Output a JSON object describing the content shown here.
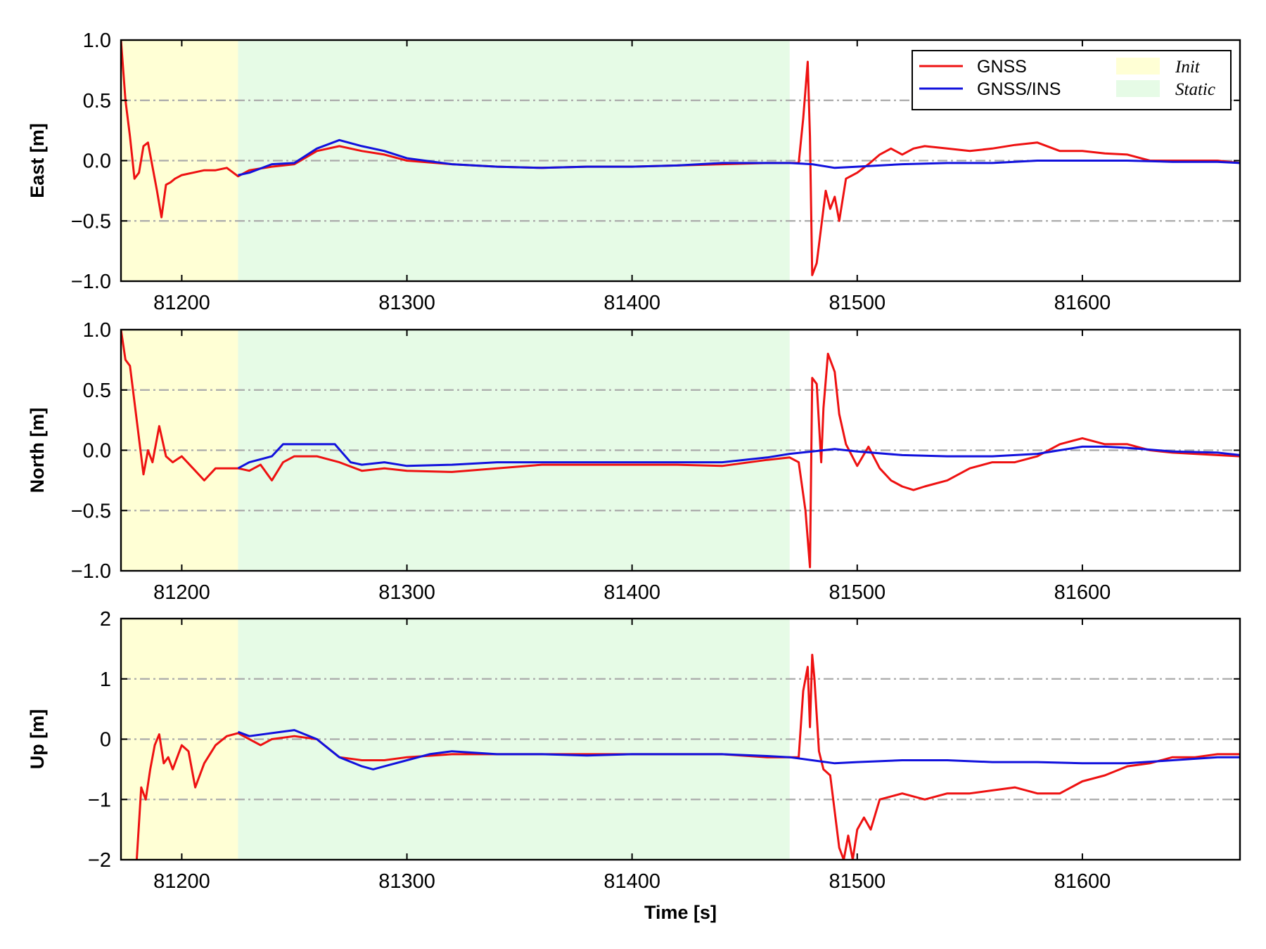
{
  "chart_data": [
    {
      "type": "line",
      "ylabel": "East [m]",
      "xlabel": "",
      "xlim": [
        81173,
        81670
      ],
      "ylim": [
        -1.0,
        1.0
      ],
      "xticks": [
        81200,
        81300,
        81400,
        81500,
        81600
      ],
      "xtick_labels": [
        "81200",
        "81300",
        "81400",
        "81500",
        "81600"
      ],
      "yticks": [
        -1.0,
        -0.5,
        0.0,
        0.5,
        1.0
      ],
      "ytick_labels": [
        "−1.0",
        "−0.5",
        "0.0",
        "0.5",
        "1.0"
      ],
      "hlines": [
        -0.5,
        0.0,
        0.5
      ],
      "shaded_regions": [
        {
          "name": "Init",
          "x0": 81173,
          "x1": 81225,
          "color": "#ffffd5"
        },
        {
          "name": "Static",
          "x0": 81225,
          "x1": 81470,
          "color": "#e6fbe6"
        }
      ],
      "legend": {
        "placement": "top-right",
        "lines": [
          {
            "label": "GNSS",
            "color": "#ee1111"
          },
          {
            "label": "GNSS/INS",
            "color": "#1111dd"
          }
        ],
        "patches": [
          {
            "label": "Init",
            "color": "#ffffd5"
          },
          {
            "label": "Static",
            "color": "#e6fbe6"
          }
        ]
      },
      "series": [
        {
          "name": "GNSS",
          "color": "#ee1111",
          "x": [
            81173,
            81175,
            81177,
            81179,
            81181,
            81183,
            81185,
            81187,
            81189,
            81191,
            81193,
            81195,
            81197,
            81200,
            81205,
            81210,
            81215,
            81220,
            81225,
            81230,
            81240,
            81250,
            81260,
            81270,
            81280,
            81290,
            81300,
            81320,
            81340,
            81360,
            81380,
            81400,
            81420,
            81440,
            81460,
            81470,
            81474,
            81476,
            81478,
            81479,
            81480,
            81482,
            81484,
            81486,
            81488,
            81490,
            81492,
            81495,
            81500,
            81505,
            81510,
            81515,
            81520,
            81525,
            81530,
            81540,
            81550,
            81560,
            81570,
            81580,
            81590,
            81600,
            81610,
            81620,
            81630,
            81640,
            81650,
            81660,
            81670
          ],
          "y": [
            1.0,
            0.5,
            0.2,
            -0.15,
            -0.1,
            0.12,
            0.15,
            -0.05,
            -0.25,
            -0.47,
            -0.2,
            -0.18,
            -0.15,
            -0.12,
            -0.1,
            -0.08,
            -0.08,
            -0.06,
            -0.13,
            -0.08,
            -0.05,
            -0.03,
            0.08,
            0.12,
            0.08,
            0.05,
            0.0,
            -0.03,
            -0.05,
            -0.06,
            -0.05,
            -0.05,
            -0.04,
            -0.03,
            -0.02,
            -0.02,
            -0.02,
            0.35,
            0.82,
            0.2,
            -0.95,
            -0.85,
            -0.55,
            -0.25,
            -0.4,
            -0.3,
            -0.5,
            -0.15,
            -0.1,
            -0.03,
            0.05,
            0.1,
            0.05,
            0.1,
            0.12,
            0.1,
            0.08,
            0.1,
            0.13,
            0.15,
            0.08,
            0.08,
            0.06,
            0.05,
            0.0,
            0.0,
            0.0,
            0.0,
            -0.02
          ]
        },
        {
          "name": "GNSS/INS",
          "color": "#1111dd",
          "x": [
            81225,
            81230,
            81240,
            81250,
            81260,
            81270,
            81280,
            81290,
            81300,
            81320,
            81340,
            81360,
            81380,
            81400,
            81420,
            81440,
            81460,
            81470,
            81480,
            81490,
            81500,
            81520,
            81540,
            81560,
            81580,
            81600,
            81620,
            81640,
            81660,
            81670
          ],
          "y": [
            -0.12,
            -0.1,
            -0.03,
            -0.02,
            0.1,
            0.17,
            0.12,
            0.08,
            0.02,
            -0.03,
            -0.05,
            -0.06,
            -0.05,
            -0.05,
            -0.04,
            -0.02,
            -0.02,
            -0.02,
            -0.03,
            -0.06,
            -0.05,
            -0.03,
            -0.02,
            -0.02,
            0.0,
            0.0,
            0.0,
            -0.01,
            -0.01,
            -0.02
          ]
        }
      ]
    },
    {
      "type": "line",
      "ylabel": "North [m]",
      "xlabel": "",
      "xlim": [
        81173,
        81670
      ],
      "ylim": [
        -1.0,
        1.0
      ],
      "xticks": [
        81200,
        81300,
        81400,
        81500,
        81600
      ],
      "xtick_labels": [
        "81200",
        "81300",
        "81400",
        "81500",
        "81600"
      ],
      "yticks": [
        -1.0,
        -0.5,
        0.0,
        0.5,
        1.0
      ],
      "ytick_labels": [
        "−1.0",
        "−0.5",
        "0.0",
        "0.5",
        "1.0"
      ],
      "hlines": [
        -0.5,
        0.0,
        0.5
      ],
      "shaded_regions": [
        {
          "name": "Init",
          "x0": 81173,
          "x1": 81225,
          "color": "#ffffd5"
        },
        {
          "name": "Static",
          "x0": 81225,
          "x1": 81470,
          "color": "#e6fbe6"
        }
      ],
      "series": [
        {
          "name": "GNSS",
          "color": "#ee1111",
          "x": [
            81173,
            81175,
            81177,
            81179,
            81181,
            81183,
            81185,
            81187,
            81190,
            81193,
            81196,
            81200,
            81205,
            81210,
            81215,
            81220,
            81225,
            81230,
            81235,
            81240,
            81245,
            81250,
            81260,
            81270,
            81280,
            81290,
            81300,
            81320,
            81340,
            81360,
            81380,
            81400,
            81420,
            81440,
            81460,
            81470,
            81474,
            81477,
            81479,
            81480,
            81482,
            81484,
            81485,
            81487,
            81490,
            81492,
            81495,
            81500,
            81505,
            81510,
            81515,
            81520,
            81525,
            81530,
            81540,
            81550,
            81560,
            81570,
            81580,
            81590,
            81600,
            81610,
            81620,
            81630,
            81640,
            81650,
            81660,
            81670
          ],
          "y": [
            1.0,
            0.75,
            0.7,
            0.4,
            0.1,
            -0.2,
            0.0,
            -0.1,
            0.2,
            -0.05,
            -0.1,
            -0.05,
            -0.15,
            -0.25,
            -0.15,
            -0.15,
            -0.15,
            -0.17,
            -0.12,
            -0.25,
            -0.1,
            -0.05,
            -0.05,
            -0.1,
            -0.17,
            -0.15,
            -0.17,
            -0.18,
            -0.15,
            -0.12,
            -0.12,
            -0.12,
            -0.12,
            -0.13,
            -0.08,
            -0.06,
            -0.1,
            -0.5,
            -0.97,
            0.6,
            0.55,
            -0.1,
            0.35,
            0.8,
            0.65,
            0.3,
            0.05,
            -0.13,
            0.03,
            -0.15,
            -0.25,
            -0.3,
            -0.33,
            -0.3,
            -0.25,
            -0.15,
            -0.1,
            -0.1,
            -0.05,
            0.05,
            0.1,
            0.05,
            0.05,
            0.0,
            -0.02,
            -0.03,
            -0.04,
            -0.05
          ]
        },
        {
          "name": "GNSS/INS",
          "color": "#1111dd",
          "x": [
            81225,
            81230,
            81240,
            81245,
            81250,
            81260,
            81268,
            81275,
            81280,
            81290,
            81300,
            81320,
            81340,
            81360,
            81380,
            81400,
            81420,
            81440,
            81460,
            81470,
            81480,
            81490,
            81500,
            81520,
            81540,
            81560,
            81580,
            81590,
            81600,
            81610,
            81620,
            81640,
            81660,
            81670
          ],
          "y": [
            -0.15,
            -0.1,
            -0.05,
            0.05,
            0.05,
            0.05,
            0.05,
            -0.1,
            -0.12,
            -0.1,
            -0.13,
            -0.12,
            -0.1,
            -0.1,
            -0.1,
            -0.1,
            -0.1,
            -0.1,
            -0.06,
            -0.03,
            -0.01,
            0.01,
            -0.01,
            -0.04,
            -0.05,
            -0.05,
            -0.03,
            0.0,
            0.03,
            0.03,
            0.02,
            -0.01,
            -0.02,
            -0.04
          ]
        }
      ]
    },
    {
      "type": "line",
      "ylabel": "Up [m]",
      "xlabel": "Time [s]",
      "xlim": [
        81173,
        81670
      ],
      "ylim": [
        -2,
        2
      ],
      "xticks": [
        81200,
        81300,
        81400,
        81500,
        81600
      ],
      "xtick_labels": [
        "81200",
        "81300",
        "81400",
        "81500",
        "81600"
      ],
      "yticks": [
        -2,
        -1,
        0,
        1,
        2
      ],
      "ytick_labels": [
        "−2",
        "−1",
        "0",
        "1",
        "2"
      ],
      "hlines": [
        -1,
        0,
        1
      ],
      "shaded_regions": [
        {
          "name": "Init",
          "x0": 81173,
          "x1": 81225,
          "color": "#ffffd5"
        },
        {
          "name": "Static",
          "x0": 81225,
          "x1": 81470,
          "color": "#e6fbe6"
        }
      ],
      "series": [
        {
          "name": "GNSS",
          "color": "#ee1111",
          "x": [
            81180,
            81182,
            81184,
            81186,
            81188,
            81190,
            81192,
            81194,
            81196,
            81200,
            81203,
            81206,
            81210,
            81215,
            81220,
            81225,
            81230,
            81235,
            81240,
            81250,
            81260,
            81270,
            81280,
            81290,
            81300,
            81320,
            81340,
            81360,
            81380,
            81400,
            81420,
            81440,
            81460,
            81470,
            81474,
            81476,
            81478,
            81479,
            81480,
            81481,
            81483,
            81485,
            81488,
            81490,
            81492,
            81494,
            81496,
            81498,
            81500,
            81503,
            81506,
            81510,
            81520,
            81530,
            81540,
            81550,
            81560,
            81570,
            81580,
            81590,
            81600,
            81610,
            81620,
            81630,
            81640,
            81650,
            81660,
            81670
          ],
          "y": [
            -2.0,
            -0.8,
            -1.0,
            -0.5,
            -0.1,
            0.08,
            -0.4,
            -0.3,
            -0.5,
            -0.1,
            -0.2,
            -0.8,
            -0.4,
            -0.1,
            0.05,
            0.1,
            0.0,
            -0.1,
            0.0,
            0.05,
            0.0,
            -0.3,
            -0.35,
            -0.35,
            -0.3,
            -0.25,
            -0.25,
            -0.25,
            -0.25,
            -0.25,
            -0.25,
            -0.25,
            -0.3,
            -0.3,
            -0.3,
            0.8,
            1.2,
            0.2,
            1.4,
            1.0,
            -0.2,
            -0.5,
            -0.6,
            -1.2,
            -1.8,
            -2.0,
            -1.6,
            -2.0,
            -1.5,
            -1.3,
            -1.5,
            -1.0,
            -0.9,
            -1.0,
            -0.9,
            -0.9,
            -0.85,
            -0.8,
            -0.9,
            -0.9,
            -0.7,
            -0.6,
            -0.45,
            -0.4,
            -0.3,
            -0.3,
            -0.25,
            -0.25
          ]
        },
        {
          "name": "GNSS/INS",
          "color": "#1111dd",
          "x": [
            81225,
            81230,
            81240,
            81250,
            81260,
            81265,
            81270,
            81280,
            81285,
            81290,
            81300,
            81310,
            81320,
            81340,
            81360,
            81380,
            81400,
            81420,
            81440,
            81460,
            81470,
            81480,
            81490,
            81500,
            81520,
            81540,
            81560,
            81580,
            81600,
            81620,
            81640,
            81660,
            81670
          ],
          "y": [
            0.12,
            0.05,
            0.1,
            0.15,
            0.0,
            -0.15,
            -0.3,
            -0.45,
            -0.5,
            -0.45,
            -0.35,
            -0.25,
            -0.2,
            -0.25,
            -0.25,
            -0.27,
            -0.25,
            -0.25,
            -0.25,
            -0.28,
            -0.3,
            -0.35,
            -0.4,
            -0.38,
            -0.35,
            -0.35,
            -0.38,
            -0.38,
            -0.4,
            -0.4,
            -0.35,
            -0.3,
            -0.3
          ]
        }
      ]
    }
  ]
}
